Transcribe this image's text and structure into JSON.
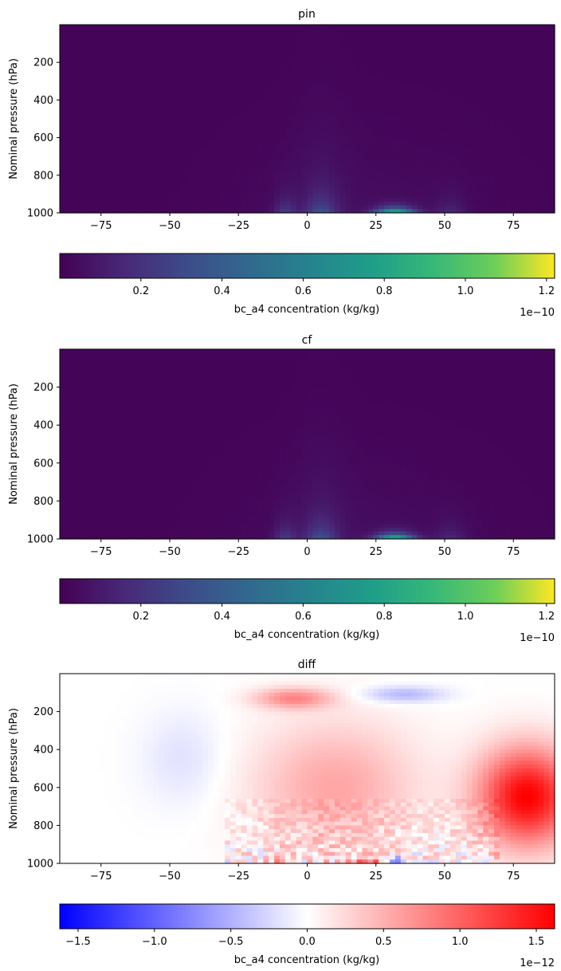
{
  "chart_data": [
    {
      "type": "heatmap",
      "title": "pin",
      "xlabel": "",
      "ylabel": "Nominal pressure (hPa)",
      "xlim": [
        -90,
        90
      ],
      "ylim": [
        1000,
        0
      ],
      "xticks": [
        "−75",
        "−50",
        "−25",
        "0",
        "25",
        "50",
        "75"
      ],
      "xtick_values": [
        -75,
        -50,
        -25,
        0,
        25,
        50,
        75
      ],
      "yticks": [
        "200",
        "400",
        "600",
        "800",
        "1000"
      ],
      "ytick_values": [
        200,
        400,
        600,
        800,
        1000
      ],
      "colormap": "viridis",
      "colorbar": {
        "label": "bc_a4 concentration (kg/kg)",
        "range": [
          0.0,
          1.22
        ],
        "ticks": [
          "0.2",
          "0.4",
          "0.6",
          "0.8",
          "1.0",
          "1.2"
        ],
        "tick_values": [
          0.2,
          0.4,
          0.6,
          0.8,
          1.0,
          1.2
        ],
        "offset_text": "1e−10"
      },
      "features": {
        "max_value": 1.22,
        "max_location": {
          "lat": 32,
          "pressure_hPa": 990
        },
        "background_value": 0.02
      }
    },
    {
      "type": "heatmap",
      "title": "cf",
      "xlabel": "",
      "ylabel": "Nominal pressure (hPa)",
      "xlim": [
        -90,
        90
      ],
      "ylim": [
        1000,
        0
      ],
      "xticks": [
        "−75",
        "−50",
        "−25",
        "0",
        "25",
        "50",
        "75"
      ],
      "xtick_values": [
        -75,
        -50,
        -25,
        0,
        25,
        50,
        75
      ],
      "yticks": [
        "200",
        "400",
        "600",
        "800",
        "1000"
      ],
      "ytick_values": [
        200,
        400,
        600,
        800,
        1000
      ],
      "colormap": "viridis",
      "colorbar": {
        "label": "bc_a4 concentration (kg/kg)",
        "range": [
          0.0,
          1.22
        ],
        "ticks": [
          "0.2",
          "0.4",
          "0.6",
          "0.8",
          "1.0",
          "1.2"
        ],
        "tick_values": [
          0.2,
          0.4,
          0.6,
          0.8,
          1.0,
          1.2
        ],
        "offset_text": "1e−10"
      },
      "features": {
        "max_value": 1.22,
        "max_location": {
          "lat": 32,
          "pressure_hPa": 990
        },
        "background_value": 0.02
      }
    },
    {
      "type": "heatmap",
      "title": "diff",
      "xlabel": "",
      "ylabel": "Nominal pressure (hPa)",
      "xlim": [
        -90,
        90
      ],
      "ylim": [
        1000,
        0
      ],
      "xticks": [
        "−75",
        "−50",
        "−25",
        "0",
        "25",
        "50",
        "75"
      ],
      "xtick_values": [
        -75,
        -50,
        -25,
        0,
        25,
        50,
        75
      ],
      "yticks": [
        "200",
        "400",
        "600",
        "800",
        "1000"
      ],
      "ytick_values": [
        200,
        400,
        600,
        800,
        1000
      ],
      "colormap": "bwr",
      "colorbar": {
        "label": "bc_a4 concentration (kg/kg)",
        "range": [
          -1.62,
          1.62
        ],
        "ticks": [
          "−1.5",
          "−1.0",
          "−0.5",
          "0.0",
          "0.5",
          "1.0",
          "1.5"
        ],
        "tick_values": [
          -1.5,
          -1.0,
          -0.5,
          0.0,
          0.5,
          1.0,
          1.5
        ],
        "offset_text": "1e−12"
      },
      "features": {
        "max_value": 1.62,
        "min_value": -1.62,
        "min_location": {
          "lat": 32,
          "pressure_hPa": 990
        },
        "positive_maximum_location": {
          "lat": 90,
          "pressure_hPa": 650
        }
      }
    }
  ]
}
